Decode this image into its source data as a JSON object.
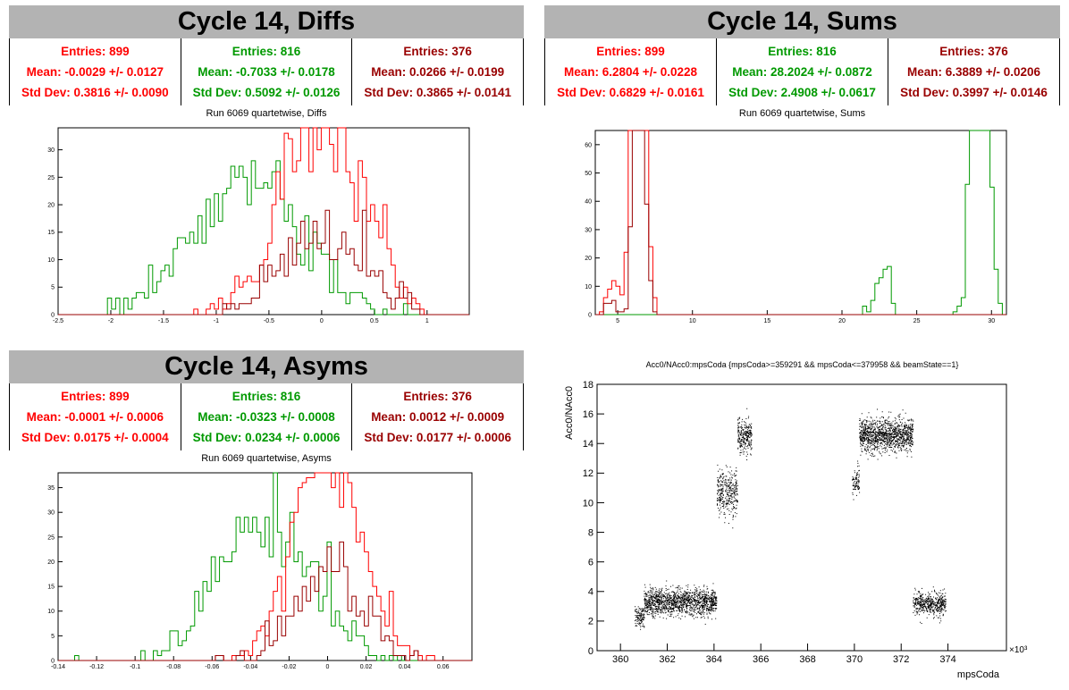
{
  "panels": {
    "diffs": {
      "header": "Cycle 14, Diffs",
      "subtitle": "Run 6069 quartetwise, Diffs",
      "stats": [
        {
          "color": "#ff0000",
          "entries": "Entries: 899",
          "mean": "Mean: -0.0029 +/- 0.0127",
          "std": "Std Dev: 0.3816 +/- 0.0090"
        },
        {
          "color": "#009900",
          "entries": "Entries: 816",
          "mean": "Mean: -0.7033 +/- 0.0178",
          "std": "Std Dev: 0.5092 +/- 0.0126"
        },
        {
          "color": "#990000",
          "entries": "Entries: 376",
          "mean": "Mean: 0.0266 +/- 0.0199",
          "std": "Std Dev: 0.3865 +/- 0.0141"
        }
      ]
    },
    "sums": {
      "header": "Cycle 14, Sums",
      "subtitle": "Run 6069 quartetwise, Sums",
      "stats": [
        {
          "color": "#ff0000",
          "entries": "Entries: 899",
          "mean": "Mean: 6.2804 +/- 0.0228",
          "std": "Std Dev: 0.6829 +/- 0.0161"
        },
        {
          "color": "#009900",
          "entries": "Entries: 816",
          "mean": "Mean: 28.2024 +/- 0.0872",
          "std": "Std Dev: 2.4908 +/- 0.0617"
        },
        {
          "color": "#990000",
          "entries": "Entries: 376",
          "mean": "Mean: 6.3889 +/- 0.0206",
          "std": "Std Dev: 0.3997 +/- 0.0146"
        }
      ]
    },
    "asyms": {
      "header": "Cycle 14, Asyms",
      "subtitle": "Run 6069 quartetwise, Asyms",
      "stats": [
        {
          "color": "#ff0000",
          "entries": "Entries: 899",
          "mean": "Mean: -0.0001 +/- 0.0006",
          "std": "Std Dev: 0.0175 +/- 0.0004"
        },
        {
          "color": "#009900",
          "entries": "Entries: 816",
          "mean": "Mean: -0.0323 +/- 0.0008",
          "std": "Std Dev: 0.0234 +/- 0.0006"
        },
        {
          "color": "#990000",
          "entries": "Entries: 376",
          "mean": "Mean: 0.0012 +/- 0.0009",
          "std": "Std Dev: 0.0177 +/- 0.0006"
        }
      ]
    },
    "scatter": {
      "title": "Acc0/NAcc0:mpsCoda {mpsCoda>=359291 && mpsCoda<=379958 && beamState==1}"
    }
  },
  "chart_data": [
    {
      "id": "diffs",
      "type": "histogram",
      "xlim": [
        -2.5,
        1.4
      ],
      "ylim": [
        0,
        34
      ],
      "xticks": [
        -2.5,
        -2,
        -1.5,
        -1,
        -0.5,
        0,
        0.5,
        1
      ],
      "xticklabels": [
        "-2.5",
        "-2",
        "-1.5",
        "-1",
        "-0.5",
        "0",
        "0.5",
        "1"
      ],
      "yticks": [
        0,
        5,
        10,
        15,
        20,
        25,
        30
      ],
      "series": [
        {
          "color": "#009900",
          "kind": "gauss",
          "mean": -0.7033,
          "sd": 0.5092,
          "entries": 816,
          "range": [
            -2.2,
            1.2
          ]
        },
        {
          "color": "#ff0000",
          "kind": "gauss",
          "mean": -0.0029,
          "sd": 0.3816,
          "entries": 899,
          "range": [
            -1.3,
            1.25
          ]
        },
        {
          "color": "#990000",
          "kind": "gauss",
          "mean": 0.0266,
          "sd": 0.3865,
          "entries": 376,
          "range": [
            -1.1,
            1.0
          ]
        }
      ]
    },
    {
      "id": "sums",
      "type": "histogram",
      "xlim": [
        3.5,
        31
      ],
      "ylim": [
        0,
        65
      ],
      "xticks": [
        5,
        10,
        15,
        20,
        25,
        30
      ],
      "xticklabels": [
        "5",
        "10",
        "15",
        "20",
        "25",
        "30"
      ],
      "yticks": [
        0,
        10,
        20,
        30,
        40,
        50,
        60
      ],
      "series": [
        {
          "color": "#009900",
          "kind": "multi",
          "components": [
            {
              "mean": 22.7,
              "sd": 0.55,
              "n": 70
            },
            {
              "mean": 29.25,
              "sd": 0.5,
              "n": 746
            }
          ],
          "range": [
            20,
            30.8
          ]
        },
        {
          "color": "#ff0000",
          "kind": "multi",
          "components": [
            {
              "mean": 4.6,
              "sd": 0.3,
              "n": 40
            },
            {
              "mean": 6.4,
              "sd": 0.38,
              "n": 859
            }
          ],
          "range": [
            3.8,
            7.6
          ]
        },
        {
          "color": "#990000",
          "kind": "multi",
          "components": [
            {
              "mean": 4.6,
              "sd": 0.3,
              "n": 15
            },
            {
              "mean": 6.45,
              "sd": 0.35,
              "n": 361
            }
          ],
          "range": [
            3.8,
            7.5
          ]
        }
      ]
    },
    {
      "id": "asyms",
      "type": "histogram",
      "xlim": [
        -0.14,
        0.075
      ],
      "ylim": [
        0,
        38
      ],
      "xticks": [
        -0.14,
        -0.12,
        -0.1,
        -0.08,
        -0.06,
        -0.04,
        -0.02,
        0,
        0.02,
        0.04,
        0.06
      ],
      "xticklabels": [
        "-0.14",
        "-0.12",
        "-0.1",
        "-0.08",
        "-0.06",
        "-0.04",
        "-0.02",
        "0",
        "0.02",
        "0.04",
        "0.06"
      ],
      "yticks": [
        0,
        5,
        10,
        15,
        20,
        25,
        30,
        35
      ],
      "series": [
        {
          "color": "#009900",
          "kind": "gauss",
          "mean": -0.0323,
          "sd": 0.0234,
          "entries": 816,
          "range": [
            -0.13,
            0.06
          ]
        },
        {
          "color": "#ff0000",
          "kind": "gauss",
          "mean": -0.0001,
          "sd": 0.0175,
          "entries": 899,
          "range": [
            -0.07,
            0.062
          ]
        },
        {
          "color": "#990000",
          "kind": "gauss",
          "mean": 0.0012,
          "sd": 0.0177,
          "entries": 376,
          "range": [
            -0.06,
            0.05
          ]
        }
      ]
    },
    {
      "id": "scatter",
      "type": "scatter",
      "xlabel": "mpsCoda",
      "ylabel": "Acc0/NAcc0",
      "xlim": [
        359.0,
        376.5
      ],
      "ylim": [
        0,
        18
      ],
      "x_multiplier": "×10³",
      "xticks": [
        360,
        362,
        364,
        366,
        368,
        370,
        372,
        374
      ],
      "yticks": [
        0,
        2,
        4,
        6,
        8,
        10,
        12,
        14,
        16,
        18
      ],
      "clusters": [
        {
          "x": [
            360.6,
            361.0
          ],
          "y_center": 2.3,
          "y_spread": 0.4,
          "n": 120
        },
        {
          "x": [
            361.0,
            364.1
          ],
          "y_center": 3.3,
          "y_spread": 0.45,
          "n": 1400
        },
        {
          "x": [
            364.1,
            365.0
          ],
          "y_center": 10.8,
          "y_spread": 0.8,
          "n": 350
        },
        {
          "x": [
            365.0,
            365.6
          ],
          "y_center": 14.5,
          "y_spread": 0.55,
          "n": 260
        },
        {
          "x": [
            369.9,
            370.2
          ],
          "y_center": 11.3,
          "y_spread": 0.45,
          "n": 90
        },
        {
          "x": [
            370.2,
            372.5
          ],
          "y_center": 14.6,
          "y_spread": 0.55,
          "n": 1200
        },
        {
          "x": [
            372.5,
            373.9
          ],
          "y_center": 3.2,
          "y_spread": 0.4,
          "n": 500
        }
      ]
    }
  ]
}
